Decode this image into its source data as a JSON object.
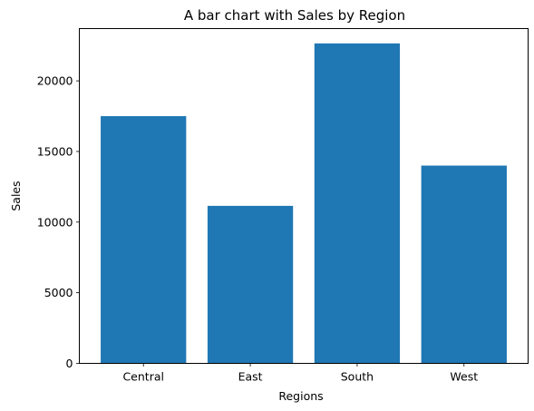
{
  "chart_data": {
    "type": "bar",
    "title": "A bar chart with Sales by Region",
    "xlabel": "Regions",
    "ylabel": "Sales",
    "categories": [
      "Central",
      "East",
      "South",
      "West"
    ],
    "values": [
      17500,
      11150,
      22650,
      14000
    ],
    "ylim": [
      0,
      23700
    ],
    "yticks": [
      0,
      5000,
      10000,
      15000,
      20000
    ],
    "bar_color": "#1f77b4",
    "grid": false,
    "legend": "none"
  }
}
